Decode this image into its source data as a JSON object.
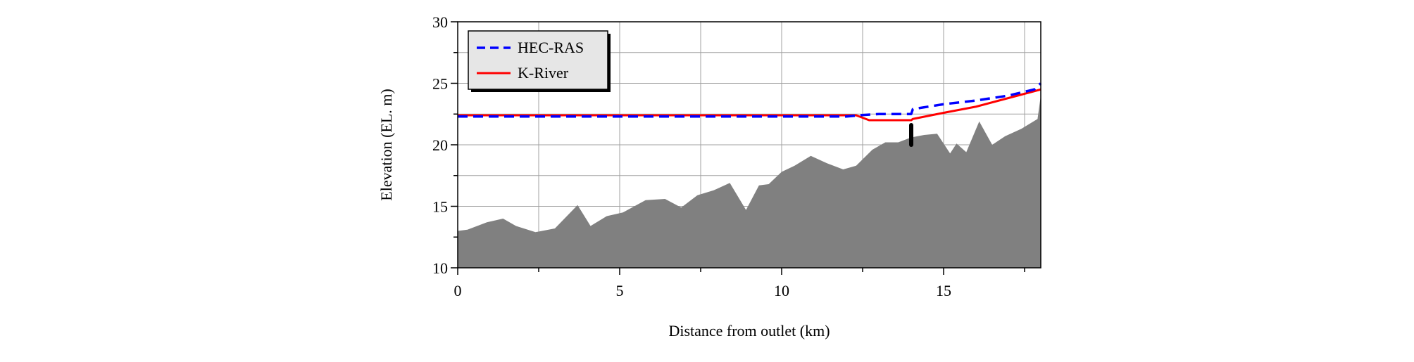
{
  "chart_data": {
    "type": "line",
    "title": "",
    "xlabel": "Distance from outlet (km)",
    "ylabel": "Elevation (EL. m)",
    "xlim": [
      0,
      18
    ],
    "ylim": [
      10,
      30
    ],
    "x_ticks": [
      0,
      5,
      10,
      15
    ],
    "y_ticks": [
      10,
      15,
      20,
      25,
      30
    ],
    "grid": true,
    "legend_position": "top-left",
    "series": [
      {
        "name": "HEC-RAS",
        "color": "#0000ff",
        "style": "dashed",
        "x": [
          0,
          2,
          4,
          6,
          8,
          10,
          12,
          12.4,
          13.0,
          14.0,
          14.05,
          15.0,
          16.0,
          17.0,
          17.8,
          18.0
        ],
        "y": [
          22.3,
          22.3,
          22.3,
          22.3,
          22.3,
          22.3,
          22.3,
          22.4,
          22.5,
          22.5,
          22.9,
          23.3,
          23.6,
          24.0,
          24.5,
          25.0
        ]
      },
      {
        "name": "K-River",
        "color": "#ff0000",
        "style": "solid",
        "x": [
          0,
          2,
          4,
          6,
          8,
          10,
          12,
          12.3,
          12.7,
          14.0,
          14.05,
          15.0,
          16.0,
          17.0,
          18.0
        ],
        "y": [
          22.4,
          22.4,
          22.4,
          22.4,
          22.4,
          22.4,
          22.4,
          22.4,
          22.0,
          22.0,
          22.1,
          22.6,
          23.1,
          23.8,
          24.5
        ]
      }
    ],
    "bed_profile": {
      "color": "#808080",
      "x": [
        0,
        0.3,
        0.9,
        1.4,
        1.8,
        2.4,
        3.0,
        3.7,
        4.1,
        4.6,
        5.1,
        5.8,
        6.4,
        6.9,
        7.4,
        7.9,
        8.4,
        8.9,
        9.3,
        9.6,
        10.0,
        10.4,
        10.9,
        11.4,
        11.9,
        12.3,
        12.8,
        13.2,
        13.6,
        14.0,
        14.4,
        14.8,
        15.2,
        15.4,
        15.7,
        16.1,
        16.5,
        16.9,
        17.4,
        17.9,
        18.0
      ],
      "y": [
        13.0,
        13.1,
        13.7,
        14.0,
        13.4,
        12.9,
        13.2,
        15.1,
        13.4,
        14.2,
        14.5,
        15.5,
        15.6,
        14.9,
        15.9,
        16.3,
        16.9,
        14.7,
        16.7,
        16.8,
        17.8,
        18.3,
        19.1,
        18.5,
        18.0,
        18.3,
        19.6,
        20.2,
        20.2,
        20.6,
        20.8,
        20.9,
        19.3,
        20.1,
        19.4,
        21.9,
        20.0,
        20.7,
        21.3,
        22.1,
        24.0
      ]
    },
    "structure_marker": {
      "x": 14.0,
      "y_from": 20.0,
      "y_to": 21.6
    }
  }
}
